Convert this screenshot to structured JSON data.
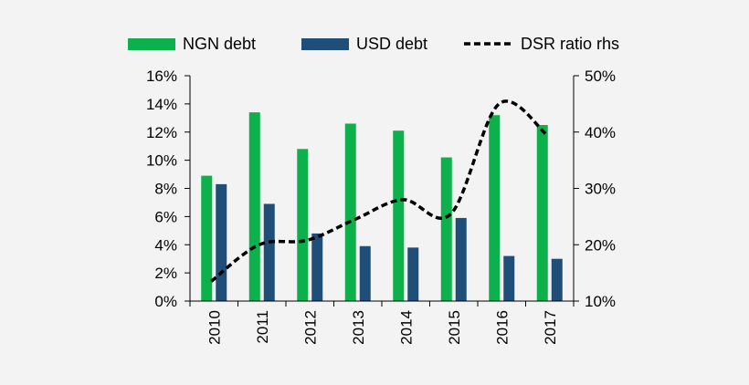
{
  "chart_data": {
    "type": "bar",
    "categories": [
      "2010",
      "2011",
      "2012",
      "2013",
      "2014",
      "2015",
      "2016",
      "2017"
    ],
    "series": [
      {
        "name": "NGN debt",
        "type": "bar",
        "axis": "left",
        "color": "#0db14b",
        "values": [
          8.9,
          13.4,
          10.8,
          12.6,
          12.1,
          10.2,
          13.2,
          12.5
        ]
      },
      {
        "name": "USD debt",
        "type": "bar",
        "axis": "left",
        "color": "#1f4e79",
        "values": [
          8.3,
          6.9,
          4.8,
          3.9,
          3.8,
          5.9,
          3.2,
          3.0
        ]
      },
      {
        "name": "DSR ratio rhs",
        "type": "line",
        "style": "dashed",
        "axis": "right",
        "color": "#000000",
        "values": [
          13.5,
          20.0,
          20.8,
          24.5,
          28.0,
          25.5,
          45.0,
          39.5
        ]
      }
    ],
    "y_left": {
      "min": 0,
      "max": 16,
      "step": 2,
      "ticks": [
        "0%",
        "2%",
        "4%",
        "6%",
        "8%",
        "10%",
        "12%",
        "14%",
        "16%"
      ]
    },
    "y_right": {
      "min": 10,
      "max": 50,
      "step": 10,
      "ticks": [
        "10%",
        "20%",
        "30%",
        "40%",
        "50%"
      ]
    },
    "grid": false,
    "legend_position": "top"
  }
}
